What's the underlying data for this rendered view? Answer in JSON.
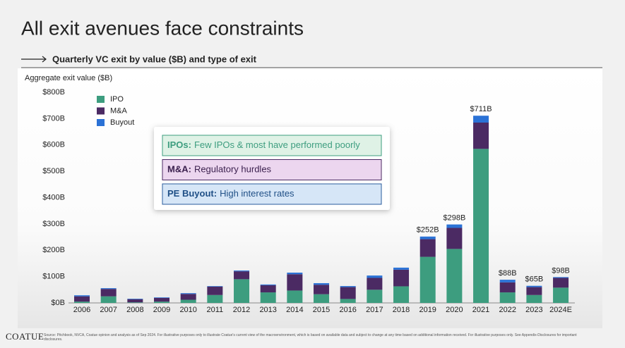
{
  "title": "All exit avenues face constraints",
  "subtitle": "Quarterly VC exit by value ($B) and type of exit",
  "chart_data": {
    "type": "stacked_bar",
    "ylabel": "Aggregate exit value ($B)",
    "categories": [
      "2006",
      "2007",
      "2008",
      "2009",
      "2010",
      "2011",
      "2012",
      "2013",
      "2014",
      "2015",
      "2016",
      "2017",
      "2018",
      "2019",
      "2020",
      "2021",
      "2022",
      "2023",
      "2024E"
    ],
    "series": [
      {
        "name": "IPO",
        "color": "#3d9d7f",
        "values": [
          5,
          25,
          2,
          5,
          12,
          30,
          90,
          40,
          47,
          33,
          15,
          50,
          63,
          175,
          205,
          585,
          40,
          30,
          58
        ]
      },
      {
        "name": "M&A",
        "color": "#4b2a63",
        "values": [
          20,
          28,
          12,
          14,
          22,
          32,
          30,
          27,
          62,
          36,
          45,
          45,
          63,
          67,
          80,
          100,
          38,
          30,
          37
        ]
      },
      {
        "name": "Buyout",
        "color": "#2b72d6",
        "values": [
          4,
          3,
          2,
          2,
          3,
          2,
          3,
          3,
          6,
          6,
          4,
          9,
          8,
          10,
          13,
          26,
          10,
          5,
          3
        ]
      }
    ],
    "totals": [
      {
        "category": "2019",
        "value": 252,
        "label": "$252B"
      },
      {
        "category": "2020",
        "value": 298,
        "label": "$298B"
      },
      {
        "category": "2021",
        "value": 711,
        "label": "$711B"
      },
      {
        "category": "2022",
        "value": 88,
        "label": "$88B"
      },
      {
        "category": "2023",
        "value": 65,
        "label": "$65B"
      },
      {
        "category": "2024E",
        "value": 98,
        "label": "$98B"
      }
    ],
    "ylim": [
      0,
      800
    ],
    "yticks": [
      {
        "value": 0,
        "label": "$0B"
      },
      {
        "value": 100,
        "label": "$100B"
      },
      {
        "value": 200,
        "label": "$200B"
      },
      {
        "value": 300,
        "label": "$300B"
      },
      {
        "value": 400,
        "label": "$400B"
      },
      {
        "value": 500,
        "label": "$500B"
      },
      {
        "value": 600,
        "label": "$600B"
      },
      {
        "value": 700,
        "label": "$700B"
      },
      {
        "value": 800,
        "label": "$800B"
      }
    ],
    "grid": false,
    "legend": "top-left"
  },
  "callouts": [
    {
      "title": "IPOs:",
      "text": "Few IPOs & most have performed poorly",
      "fill": "#dff2e6",
      "stroke": "#3d9d7f",
      "color": "#3d9d7f"
    },
    {
      "title": "M&A:",
      "text": "Regulatory hurdles",
      "fill": "#ecd6ef",
      "stroke": "#4b2a63",
      "color": "#3a1f4d"
    },
    {
      "title": "PE Buyout:",
      "text": "High interest rates",
      "fill": "#d6e6f7",
      "stroke": "#2b5c9c",
      "color": "#1f4f86"
    }
  ],
  "footer": {
    "logo": "COATUE",
    "source": "Source: Pitchbook, NVCA, Coatue opinion and analysis as of Sep 2024. For illustrative purposes only to illustrate Coatue's current view of the macroenvironment, which is based on available data and subject to change at any time based on additional information received. For illustrative purposes only. See Appendix-Disclosures for important disclosures."
  }
}
